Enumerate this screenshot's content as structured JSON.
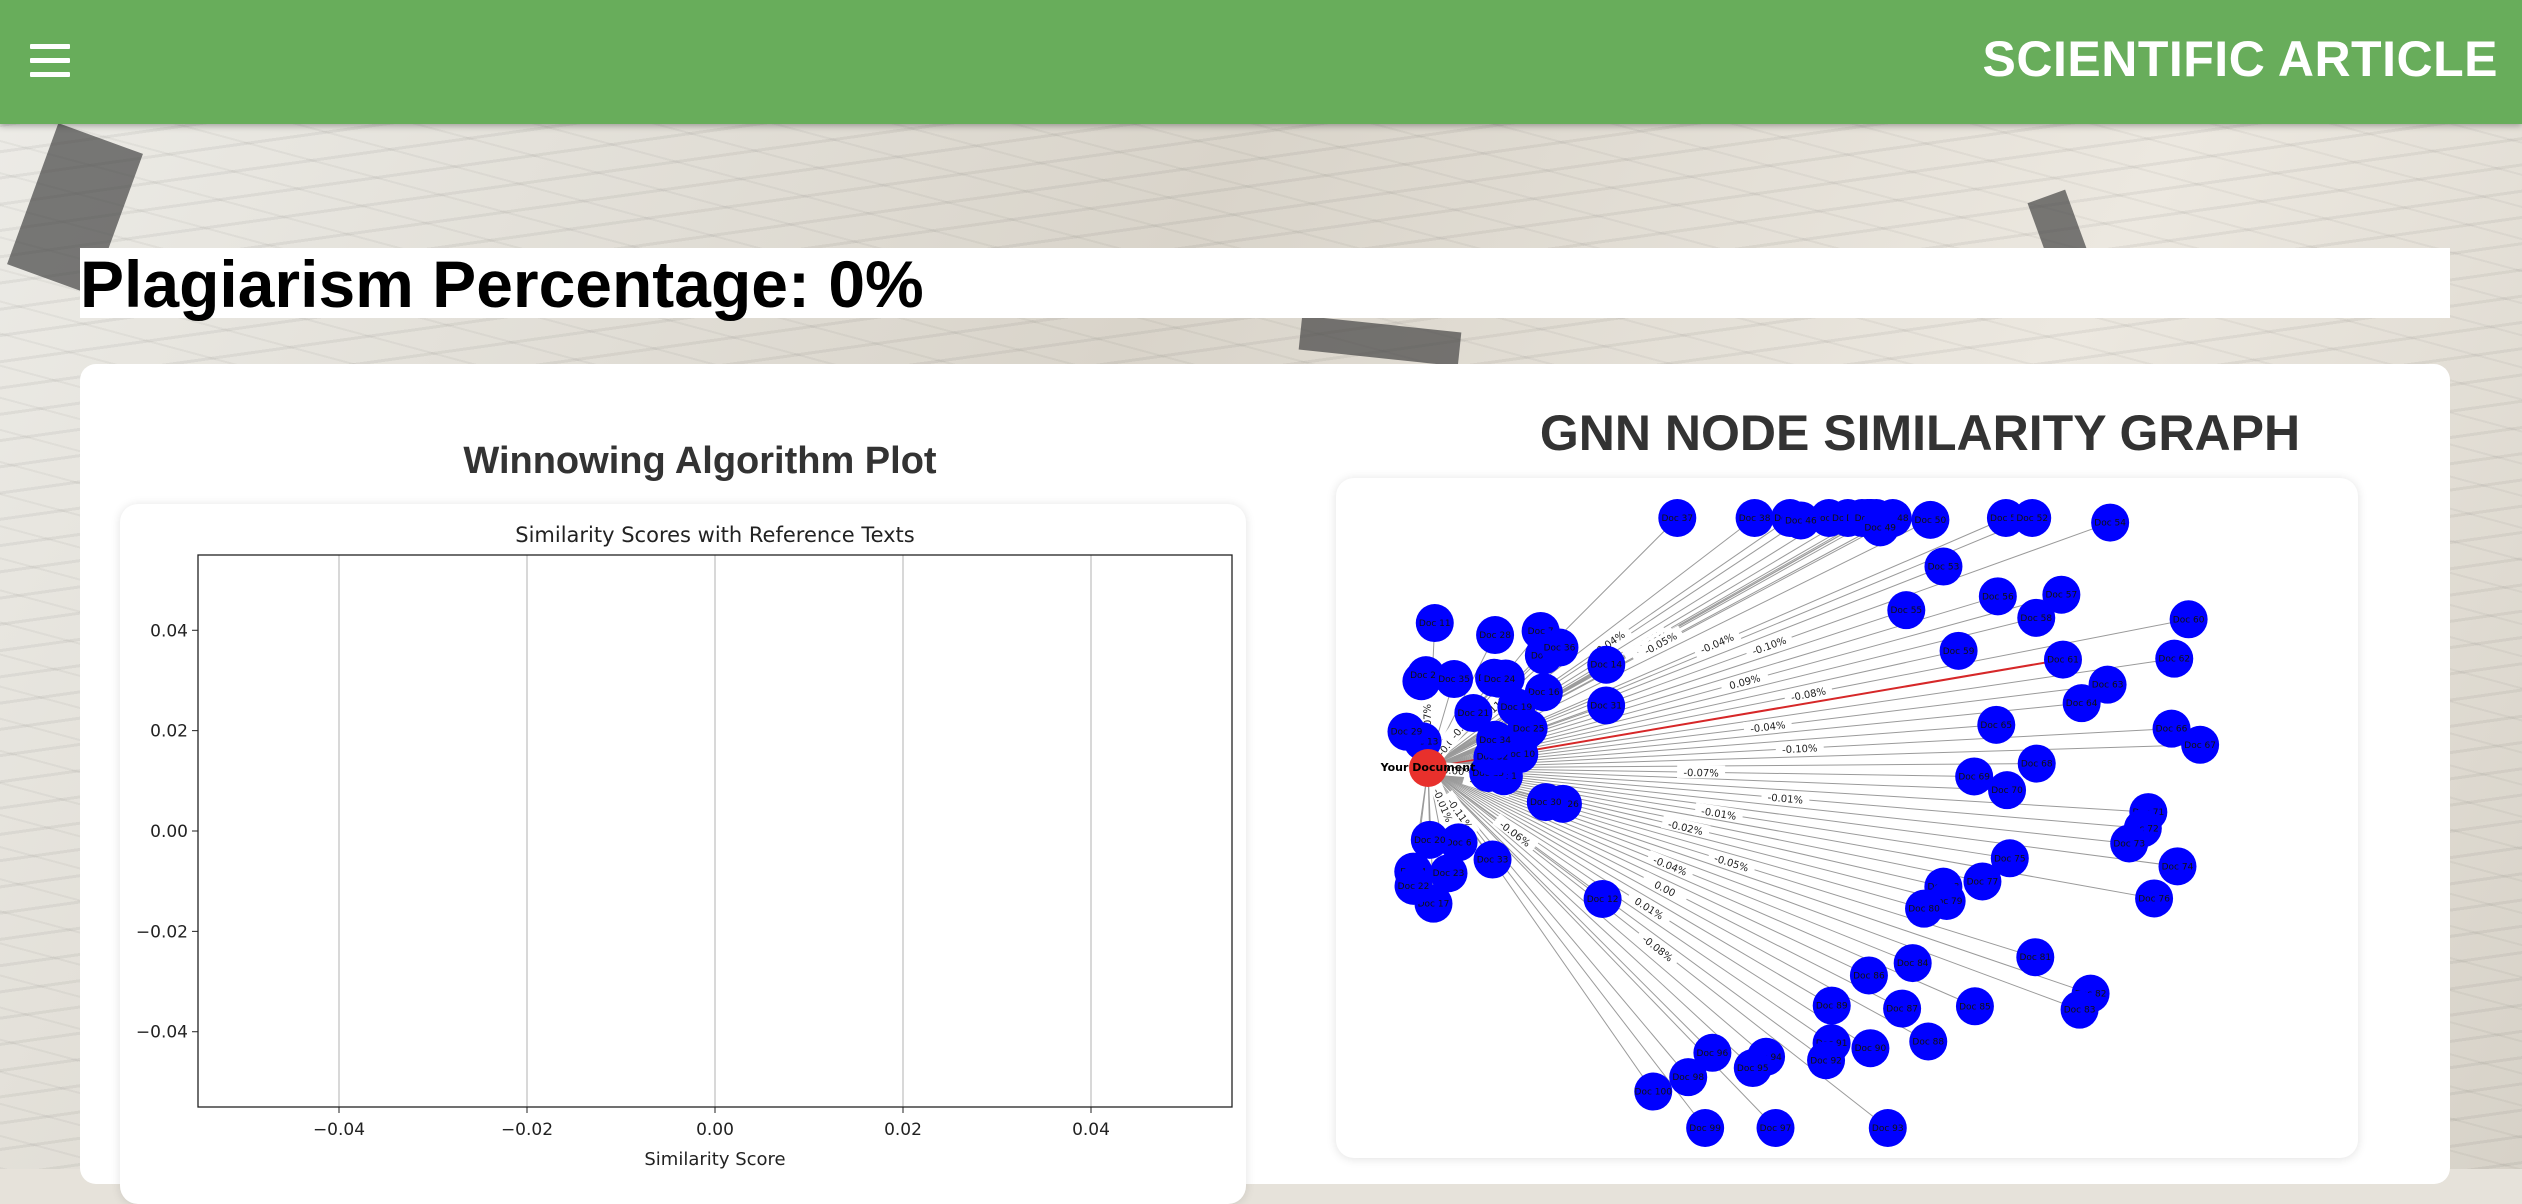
{
  "header": {
    "menu_icon": "hamburger-menu-icon",
    "title": "SCIENTIFIC ARTICLE",
    "color": "#68ad5b"
  },
  "result": {
    "plagiarism_label": "Plagiarism Percentage: 0%"
  },
  "winnowing": {
    "section_title": "Winnowing Algorithm Plot"
  },
  "gnn": {
    "section_title": "GNN NODE SIMILARITY GRAPH",
    "center_label": "Your Document",
    "center_color": "#e8302c",
    "node_color": "#0000ff",
    "highlight_edge_color": "#d62728"
  },
  "chart_data": [
    {
      "type": "bar",
      "title": "Similarity Scores with Reference Texts",
      "xlabel": "Similarity Score",
      "ylabel": "",
      "categories": [],
      "values": [],
      "xlim": [
        -0.055,
        0.055
      ],
      "ylim": [
        -0.055,
        0.055
      ],
      "xticks": [
        "−0.04",
        "−0.02",
        "0.00",
        "0.02",
        "0.04"
      ],
      "yticks": [
        "0.04",
        "0.02",
        "0.00",
        "−0.02",
        "−0.04"
      ],
      "x_grid": true
    },
    {
      "type": "network",
      "nodes": [
        "Your Document",
        "Doc 1",
        "Doc 2",
        "Doc 3",
        "Doc 4",
        "Doc 5",
        "Doc 6",
        "Doc 7",
        "Doc 8",
        "Doc 9",
        "Doc 10",
        "Doc 11",
        "Doc 12",
        "Doc 13",
        "Doc 14",
        "Doc 15",
        "Doc 16",
        "Doc 17",
        "Doc 18",
        "Doc 19",
        "Doc 20",
        "Doc 21",
        "Doc 22",
        "Doc 23",
        "Doc 24",
        "Doc 25",
        "Doc 26",
        "Doc 27",
        "Doc 28",
        "Doc 29",
        "Doc 30",
        "Doc 31",
        "Doc 32",
        "Doc 33",
        "Doc 34",
        "Doc 35",
        "Doc 36",
        "Doc 37",
        "Doc 38",
        "Doc 39",
        "Doc 40",
        "Doc 41",
        "Doc 42",
        "Doc 43",
        "Doc 44",
        "Doc 45",
        "Doc 46",
        "Doc 47",
        "Doc 48",
        "Doc 49",
        "Doc 50",
        "Doc 51",
        "Doc 52",
        "Doc 53",
        "Doc 54",
        "Doc 55",
        "Doc 56",
        "Doc 57",
        "Doc 58",
        "Doc 59",
        "Doc 60",
        "Doc 61",
        "Doc 62",
        "Doc 63",
        "Doc 64",
        "Doc 65",
        "Doc 66",
        "Doc 67",
        "Doc 68",
        "Doc 69",
        "Doc 70",
        "Doc 71",
        "Doc 72",
        "Doc 73",
        "Doc 74",
        "Doc 75",
        "Doc 76",
        "Doc 77",
        "Doc 78",
        "Doc 79",
        "Doc 80",
        "Doc 81",
        "Doc 82",
        "Doc 83",
        "Doc 84",
        "Doc 85",
        "Doc 86",
        "Doc 87",
        "Doc 88",
        "Doc 89",
        "Doc 90",
        "Doc 91",
        "Doc 92",
        "Doc 93",
        "Doc 94",
        "Doc 95",
        "Doc 96",
        "Doc 97",
        "Doc 98",
        "Doc 99",
        "Doc 100"
      ],
      "edge_labels": [
        "-0.01%",
        "0.01%",
        "-0.06%",
        "0.00%",
        "-0.09%",
        "-0.09%",
        "-0.10%",
        "-0.07%",
        "-0.03%",
        "-0.11%",
        "-0.11%",
        "-0.04%",
        "-0.03%",
        "-0.00%",
        "-0.05%",
        "-0.04%",
        "-0.10%",
        "0.09%",
        "-0.08%",
        "-0.04%",
        "-0.10%",
        "-0.07%",
        "-0.01%",
        "-0.01%",
        "-0.02%",
        "-0.05%",
        "-0.04%",
        "0.00",
        "0.01%",
        "-0.08%"
      ]
    }
  ]
}
